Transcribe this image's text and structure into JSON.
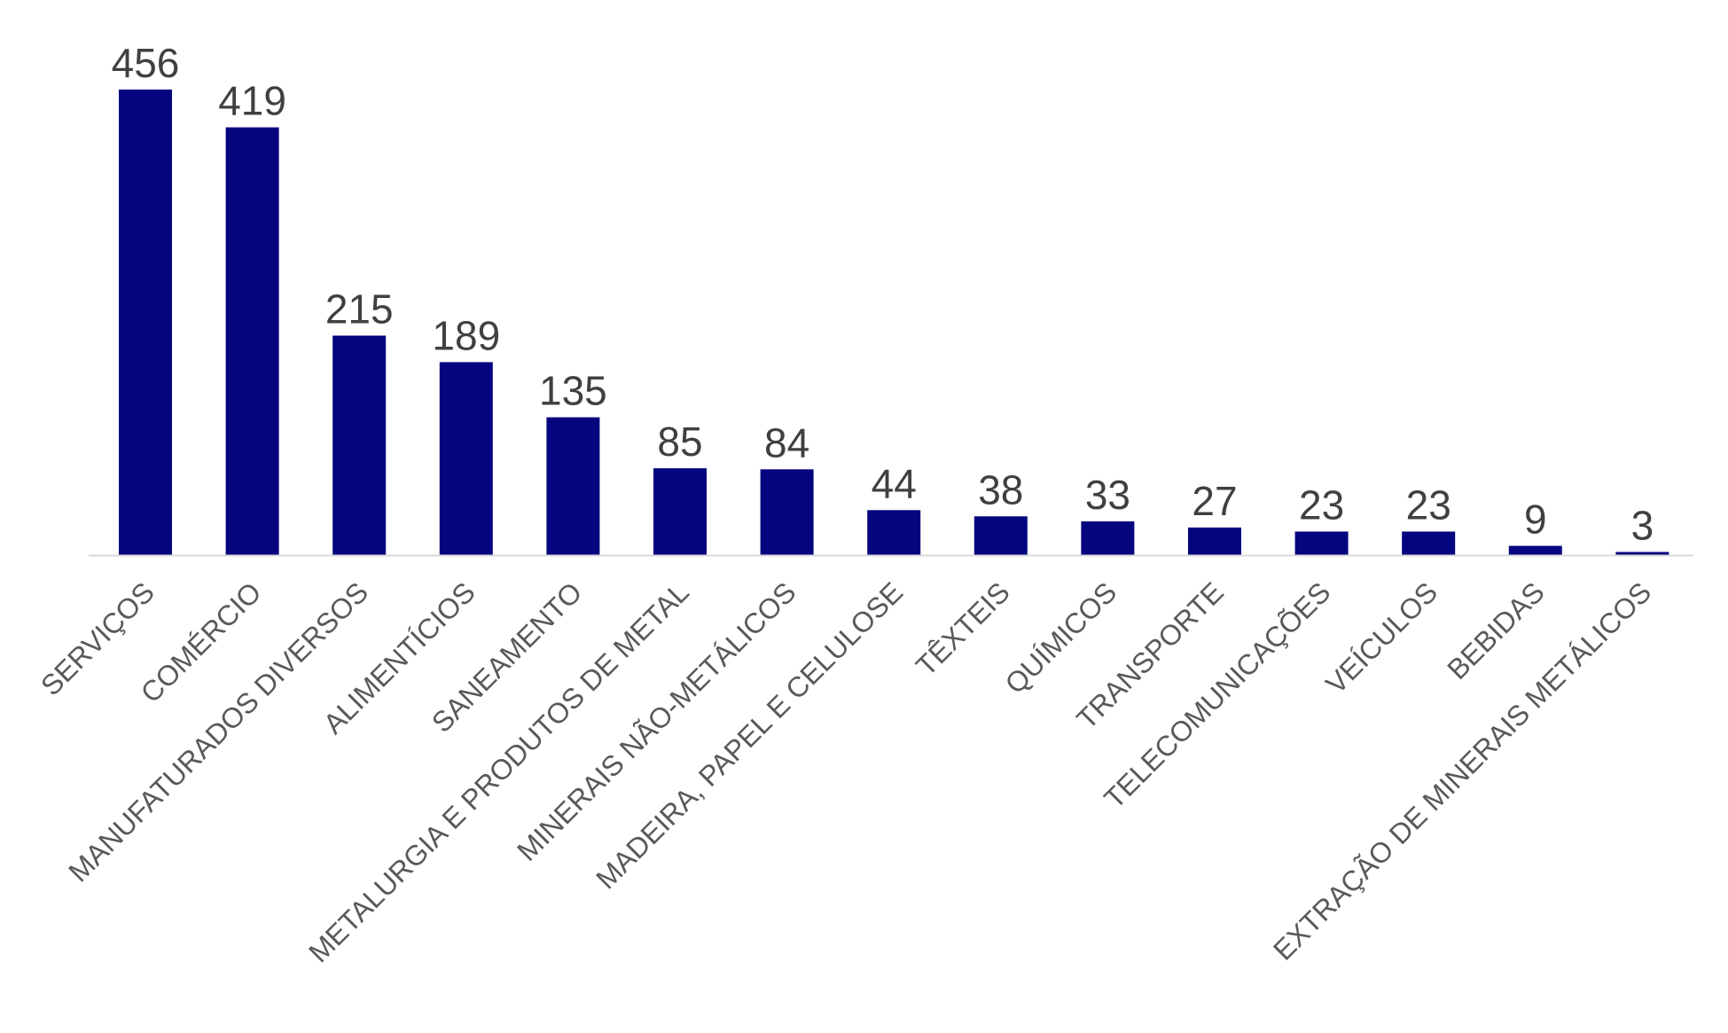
{
  "chart_data": {
    "type": "bar",
    "title": "",
    "xlabel": "",
    "ylabel": "",
    "ylim": [
      0,
      456
    ],
    "grid": false,
    "legend": "none",
    "colors": {
      "bar": "#05057f",
      "axis": "#d9d9d9",
      "value_text": "#404040",
      "category_text": "#595959"
    },
    "categories": [
      "SERVIÇOS",
      "COMÉRCIO",
      "MANUFATURADOS DIVERSOS",
      "ALIMENTÍCIOS",
      "SANEAMENTO",
      "METALURGIA E PRODUTOS DE METAL",
      "MINERAIS NÃO-METÁLICOS",
      "MADEIRA, PAPEL E CELULOSE",
      "TÊXTEIS",
      "QUÍMICOS",
      "TRANSPORTE",
      "TELECOMUNICAÇÕES",
      "VEÍCULOS",
      "BEBIDAS",
      "EXTRAÇÃO DE MINERAIS METÁLICOS"
    ],
    "values": [
      456,
      419,
      215,
      189,
      135,
      85,
      84,
      44,
      38,
      33,
      27,
      23,
      23,
      9,
      3
    ],
    "data_labels": [
      "456",
      "419",
      "215",
      "189",
      "135",
      "85",
      "84",
      "44",
      "38",
      "33",
      "27",
      "23",
      "23",
      "9",
      "3"
    ]
  }
}
